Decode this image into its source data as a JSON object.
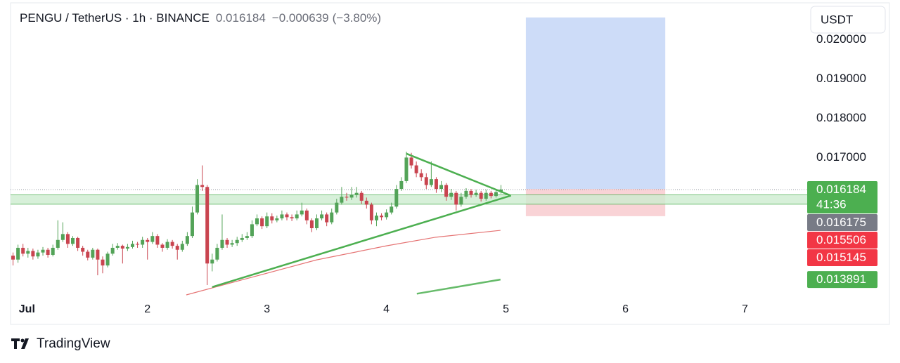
{
  "chart_data": {
    "type": "candlestick",
    "title": "PENGU / TetherUS · 1h · BINANCE",
    "last_price": 0.016184,
    "change": {
      "value": -0.000639,
      "label": "−0.000639"
    },
    "change_pct": {
      "value": -3.8,
      "label": "(−3.80%)"
    },
    "currency": "USDT",
    "up_color": "#53a358",
    "down_color": "#c9444f",
    "x": [
      -3,
      -2,
      -1,
      0,
      1,
      2,
      3,
      4,
      5,
      6,
      7,
      8,
      9,
      10,
      11,
      12,
      13,
      14,
      15,
      16,
      17,
      18,
      19,
      20,
      21,
      22,
      23,
      24,
      25,
      26,
      27,
      28,
      29,
      30,
      31,
      32,
      33,
      34,
      35,
      36,
      37,
      38,
      39,
      40,
      41,
      42,
      43,
      44,
      45,
      46,
      47,
      48,
      49,
      50,
      51,
      52,
      53,
      54,
      55,
      56,
      57,
      58,
      59,
      60,
      61,
      62,
      63,
      64,
      65,
      66,
      67,
      68,
      69,
      70,
      71,
      72,
      73,
      74,
      75,
      76,
      77,
      78,
      79,
      80,
      81,
      82,
      83,
      84,
      85,
      86,
      87,
      88,
      89,
      90,
      91,
      92,
      93,
      94,
      95
    ],
    "open": [
      0.0145,
      0.0144,
      0.0147,
      0.01455,
      0.01462,
      0.01448,
      0.01458,
      0.01465,
      0.01452,
      0.0147,
      0.0149,
      0.01505,
      0.0148,
      0.01495,
      0.0147,
      0.0146,
      0.01445,
      0.01465,
      0.0144,
      0.01425,
      0.01455,
      0.0147,
      0.01475,
      0.01468,
      0.01472,
      0.0148,
      0.01478,
      0.0149,
      0.01485,
      0.015,
      0.01478,
      0.0147,
      0.01485,
      0.01475,
      0.01465,
      0.0148,
      0.015,
      0.0156,
      0.0163,
      0.01625,
      0.0143,
      0.0144,
      0.0147,
      0.0149,
      0.01478,
      0.01482,
      0.0149,
      0.01495,
      0.015,
      0.0153,
      0.01545,
      0.01525,
      0.0155,
      0.0154,
      0.01545,
      0.01555,
      0.01548,
      0.01545,
      0.01555,
      0.01565,
      0.0154,
      0.0152,
      0.01545,
      0.01555,
      0.01535,
      0.0156,
      0.01585,
      0.016,
      0.01598,
      0.01605,
      0.0161,
      0.0159,
      0.0158,
      0.0154,
      0.01552,
      0.01548,
      0.0156,
      0.01575,
      0.0162,
      0.0164,
      0.017,
      0.0168,
      0.0166,
      0.0165,
      0.0163,
      0.01645,
      0.0162,
      0.0163,
      0.016,
      0.0161,
      0.0158,
      0.016,
      0.01615,
      0.01605,
      0.0161,
      0.01595,
      0.0161,
      0.01602,
      0.01612
    ],
    "high": [
      0.01458,
      0.01478,
      0.0148,
      0.0147,
      0.01468,
      0.01465,
      0.01472,
      0.0147,
      0.01478,
      0.0154,
      0.01535,
      0.0151,
      0.015,
      0.01498,
      0.01475,
      0.01465,
      0.0147,
      0.01468,
      0.01448,
      0.0146,
      0.0148,
      0.01482,
      0.01478,
      0.0148,
      0.01488,
      0.01485,
      0.01498,
      0.01495,
      0.0151,
      0.01505,
      0.01482,
      0.01492,
      0.0149,
      0.0148,
      0.01488,
      0.0151,
      0.01575,
      0.01645,
      0.0168,
      0.0163,
      0.01455,
      0.0148,
      0.01555,
      0.01495,
      0.0149,
      0.01498,
      0.01505,
      0.0151,
      0.0154,
      0.01555,
      0.0155,
      0.0156,
      0.01558,
      0.01552,
      0.01565,
      0.0156,
      0.01555,
      0.01565,
      0.01585,
      0.0157,
      0.01545,
      0.01555,
      0.01565,
      0.0156,
      0.0157,
      0.01595,
      0.01625,
      0.0161,
      0.01625,
      0.01625,
      0.01615,
      0.01598,
      0.01585,
      0.0156,
      0.01558,
      0.01568,
      0.01585,
      0.0163,
      0.0165,
      0.01715,
      0.01712,
      0.0169,
      0.0167,
      0.0166,
      0.0169,
      0.0165,
      0.0164,
      0.01635,
      0.0162,
      0.01615,
      0.0161,
      0.01622,
      0.0162,
      0.01618,
      0.01615,
      0.01618,
      0.01615,
      0.0162,
      0.0163
    ],
    "low": [
      0.01425,
      0.01432,
      0.01448,
      0.01445,
      0.0144,
      0.01442,
      0.0145,
      0.01445,
      0.01448,
      0.01465,
      0.01485,
      0.0147,
      0.01475,
      0.01462,
      0.0145,
      0.01438,
      0.0144,
      0.014,
      0.01405,
      0.0142,
      0.0145,
      0.01465,
      0.0143,
      0.01462,
      0.01468,
      0.0147,
      0.0147,
      0.0144,
      0.0148,
      0.0147,
      0.0146,
      0.01465,
      0.01468,
      0.0144,
      0.0146,
      0.01475,
      0.01495,
      0.01555,
      0.01615,
      0.01375,
      0.0141,
      0.01435,
      0.01465,
      0.0147,
      0.01472,
      0.01475,
      0.01485,
      0.0149,
      0.01495,
      0.01525,
      0.01518,
      0.0152,
      0.01532,
      0.01535,
      0.0154,
      0.0154,
      0.01538,
      0.0154,
      0.0155,
      0.0153,
      0.0151,
      0.01515,
      0.0154,
      0.01525,
      0.0153,
      0.01555,
      0.0158,
      0.0159,
      0.01592,
      0.01598,
      0.01582,
      0.0157,
      0.0153,
      0.01525,
      0.0154,
      0.01542,
      0.01555,
      0.0157,
      0.01615,
      0.01635,
      0.01672,
      0.0165,
      0.0164,
      0.0162,
      0.01625,
      0.0161,
      0.01612,
      0.0159,
      0.01592,
      0.01565,
      0.01575,
      0.01595,
      0.01598,
      0.016,
      0.01588,
      0.0159,
      0.01596,
      0.01598,
      0.01608
    ],
    "close": [
      0.0144,
      0.0147,
      0.01455,
      0.01462,
      0.01448,
      0.01458,
      0.01465,
      0.01452,
      0.0147,
      0.0149,
      0.01505,
      0.0148,
      0.01495,
      0.0147,
      0.0146,
      0.01445,
      0.01465,
      0.0144,
      0.01425,
      0.01455,
      0.0147,
      0.01475,
      0.01468,
      0.01472,
      0.0148,
      0.01478,
      0.0149,
      0.01485,
      0.015,
      0.01478,
      0.0147,
      0.01485,
      0.01475,
      0.01465,
      0.0148,
      0.015,
      0.0156,
      0.0163,
      0.01625,
      0.0143,
      0.0144,
      0.0147,
      0.0149,
      0.01478,
      0.01482,
      0.0149,
      0.01495,
      0.015,
      0.0153,
      0.01545,
      0.01525,
      0.0155,
      0.0154,
      0.01545,
      0.01555,
      0.01548,
      0.01545,
      0.01555,
      0.01565,
      0.0154,
      0.0152,
      0.01545,
      0.01555,
      0.01535,
      0.0156,
      0.01585,
      0.016,
      0.01598,
      0.01605,
      0.0161,
      0.0159,
      0.0158,
      0.0154,
      0.01552,
      0.01548,
      0.0156,
      0.01575,
      0.0162,
      0.0164,
      0.017,
      0.0168,
      0.0166,
      0.0165,
      0.0163,
      0.01645,
      0.0162,
      0.0163,
      0.016,
      0.0161,
      0.0158,
      0.016,
      0.01615,
      0.01605,
      0.0161,
      0.01595,
      0.0161,
      0.01602,
      0.01612,
      0.016184
    ],
    "xlim": [
      -3.5,
      156.5
    ],
    "xticks": [
      {
        "value": 0,
        "label": "Jul"
      },
      {
        "value": 24,
        "label": "2"
      },
      {
        "value": 48,
        "label": "3"
      },
      {
        "value": 72,
        "label": "4"
      },
      {
        "value": 96,
        "label": "5"
      },
      {
        "value": 120,
        "label": "6"
      },
      {
        "value": 144,
        "label": "7"
      }
    ],
    "ylim": [
      0.0135,
      0.0208
    ],
    "yticks": [
      {
        "value": 0.017,
        "label": "0.017000"
      },
      {
        "value": 0.018,
        "label": "0.018000"
      },
      {
        "value": 0.019,
        "label": "0.019000"
      },
      {
        "value": 0.02,
        "label": "0.020000"
      }
    ],
    "zone": {
      "range": [
        0.01581,
        0.01605
      ],
      "color": "#cdeccf",
      "border": "#4caf50"
    },
    "trendlines": [
      {
        "x": [
          37,
          97
        ],
        "values": [
          0.0137,
          0.01603
        ],
        "color": "#4caf50"
      },
      {
        "x": [
          76,
          97
        ],
        "values": [
          0.0171,
          0.01603
        ],
        "color": "#4caf50"
      }
    ],
    "moving_averages": [
      {
        "color": "#e57373",
        "x": [
          31.8,
          43.8,
          57.9,
          72,
          81.9,
          94.9
        ],
        "values": [
          0.0135,
          0.01391,
          0.01439,
          0.01475,
          0.01497,
          0.015145
        ]
      },
      {
        "color": "#66bb6a",
        "x": [
          78.1,
          94.9
        ],
        "values": [
          0.01353,
          0.013891
        ]
      }
    ],
    "position": {
      "x": [
        100,
        128
      ],
      "target": 0.02057,
      "entry": 0.0162,
      "stop": 0.015506,
      "profit_color": "#cddcf8",
      "loss_color": "#f9d3d6"
    },
    "price_tags": [
      {
        "value": 0.016184,
        "countdown": "41:36",
        "color": "#4caf50"
      },
      {
        "value": 0.016175,
        "color": "#787b86"
      },
      {
        "value": 0.015506,
        "color": "#f23645"
      },
      {
        "value": 0.015145,
        "color": "#f23645"
      },
      {
        "value": 0.013891,
        "color": "#4caf50"
      }
    ],
    "footer": "TradingView"
  }
}
